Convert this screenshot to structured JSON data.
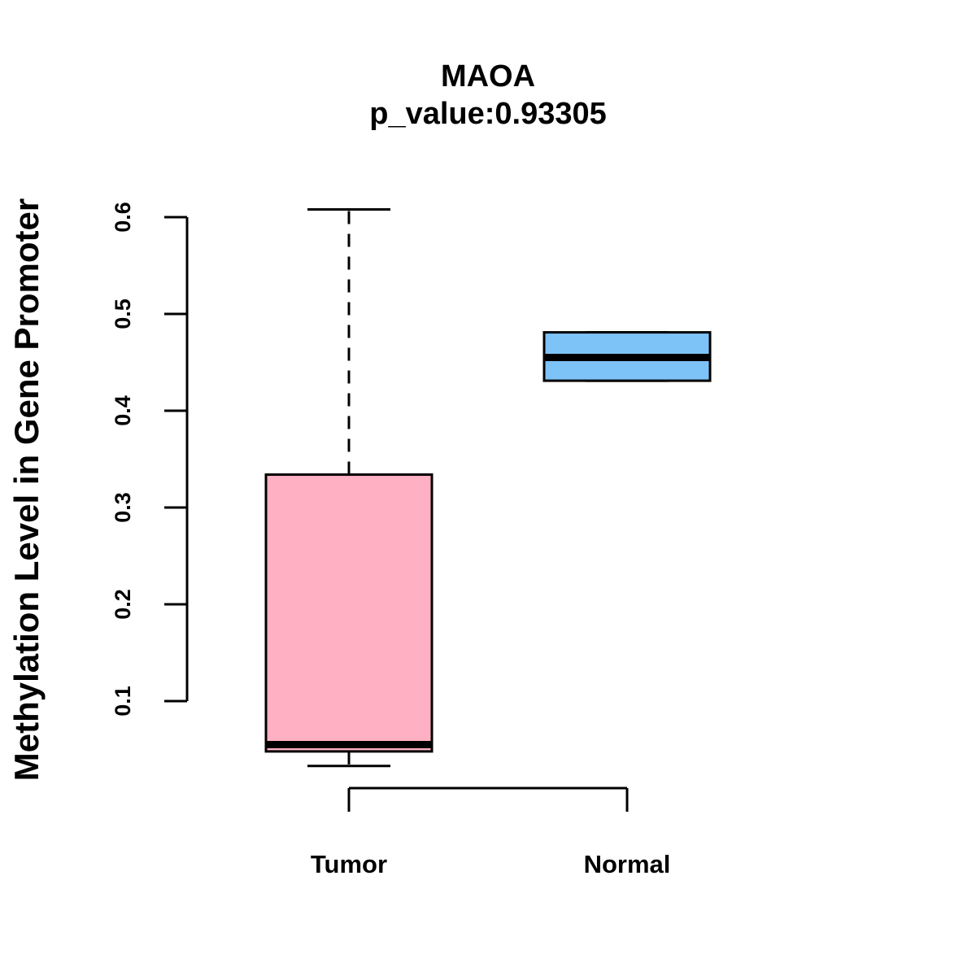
{
  "chart_data": {
    "type": "box",
    "title": "MAOA",
    "subtitle": "p_value:0.93305",
    "xlabel": "",
    "ylabel": "Methylation Level in Gene Promoter",
    "yticks": [
      0.1,
      0.2,
      0.3,
      0.4,
      0.5,
      0.6
    ],
    "ytick_labels": [
      "0.1",
      "0.2",
      "0.3",
      "0.4",
      "0.5",
      "0.6"
    ],
    "ylim": [
      0.1,
      0.6
    ],
    "categories": [
      "Tumor",
      "Normal"
    ],
    "series": [
      {
        "name": "Tumor",
        "whisker_low": 0.033,
        "q1": 0.048,
        "median": 0.055,
        "q3": 0.334,
        "whisker_high": 0.608,
        "color": "#FFB0C2"
      },
      {
        "name": "Normal",
        "whisker_low": 0.431,
        "q1": 0.431,
        "median": 0.455,
        "q3": 0.481,
        "whisker_high": 0.481,
        "color": "#7EC3F7"
      }
    ]
  }
}
